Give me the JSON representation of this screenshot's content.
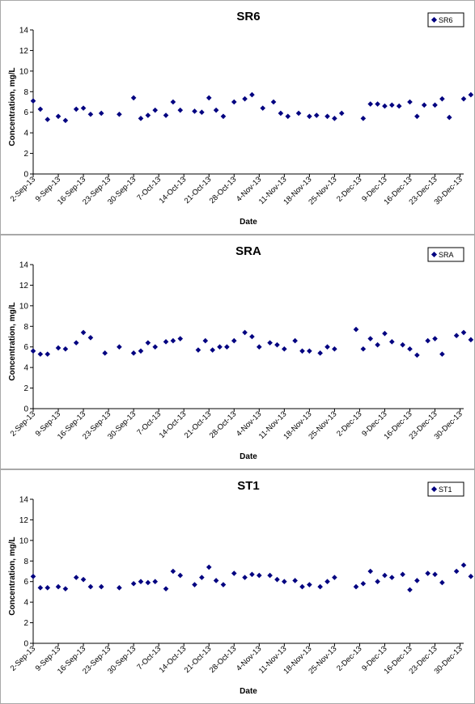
{
  "chart_data": [
    {
      "type": "scatter",
      "title": "SR6",
      "xlabel": "Date",
      "ylabel": "Concentration, mg/L",
      "ylim": [
        0,
        14
      ],
      "yticks": [
        "0",
        "2",
        "4",
        "6",
        "8",
        "10",
        "12",
        "14"
      ],
      "xlim": [
        "2013-09-02",
        "2013-12-31"
      ],
      "xtick_labels": [
        "2-Sep-13",
        "9-Sep-13",
        "16-Sep-13",
        "23-Sep-13",
        "30-Sep-13",
        "7-Oct-13",
        "14-Oct-13",
        "21-Oct-13",
        "28-Oct-13",
        "4-Nov-13",
        "11-Nov-13",
        "18-Nov-13",
        "25-Nov-13",
        "2-Dec-13",
        "9-Dec-13",
        "16-Dec-13",
        "23-Dec-13",
        "30-Dec-13"
      ],
      "legend_placement": "top-right",
      "grid": false,
      "marker_color": "#000080",
      "series": [
        {
          "name": "SR6",
          "points": [
            {
              "x": "2013-09-02",
              "y": 7.1
            },
            {
              "x": "2013-09-04",
              "y": 6.3
            },
            {
              "x": "2013-09-06",
              "y": 5.3
            },
            {
              "x": "2013-09-09",
              "y": 5.6
            },
            {
              "x": "2013-09-11",
              "y": 5.2
            },
            {
              "x": "2013-09-14",
              "y": 6.3
            },
            {
              "x": "2013-09-16",
              "y": 6.4
            },
            {
              "x": "2013-09-18",
              "y": 5.8
            },
            {
              "x": "2013-09-21",
              "y": 5.9
            },
            {
              "x": "2013-09-26",
              "y": 5.8
            },
            {
              "x": "2013-09-30",
              "y": 7.4
            },
            {
              "x": "2013-10-02",
              "y": 5.4
            },
            {
              "x": "2013-10-04",
              "y": 5.7
            },
            {
              "x": "2013-10-06",
              "y": 6.2
            },
            {
              "x": "2013-10-09",
              "y": 5.7
            },
            {
              "x": "2013-10-11",
              "y": 7.0
            },
            {
              "x": "2013-10-13",
              "y": 6.2
            },
            {
              "x": "2013-10-17",
              "y": 6.1
            },
            {
              "x": "2013-10-19",
              "y": 6.0
            },
            {
              "x": "2013-10-21",
              "y": 7.4
            },
            {
              "x": "2013-10-23",
              "y": 6.2
            },
            {
              "x": "2013-10-25",
              "y": 5.6
            },
            {
              "x": "2013-10-28",
              "y": 7.0
            },
            {
              "x": "2013-10-31",
              "y": 7.3
            },
            {
              "x": "2013-11-02",
              "y": 7.7
            },
            {
              "x": "2013-11-05",
              "y": 6.4
            },
            {
              "x": "2013-11-08",
              "y": 7.0
            },
            {
              "x": "2013-11-10",
              "y": 5.9
            },
            {
              "x": "2013-11-12",
              "y": 5.6
            },
            {
              "x": "2013-11-15",
              "y": 5.9
            },
            {
              "x": "2013-11-18",
              "y": 5.6
            },
            {
              "x": "2013-11-20",
              "y": 5.7
            },
            {
              "x": "2013-11-23",
              "y": 5.6
            },
            {
              "x": "2013-11-25",
              "y": 5.4
            },
            {
              "x": "2013-11-27",
              "y": 5.9
            },
            {
              "x": "2013-12-03",
              "y": 5.4
            },
            {
              "x": "2013-12-05",
              "y": 6.8
            },
            {
              "x": "2013-12-07",
              "y": 6.8
            },
            {
              "x": "2013-12-09",
              "y": 6.6
            },
            {
              "x": "2013-12-11",
              "y": 6.7
            },
            {
              "x": "2013-12-13",
              "y": 6.6
            },
            {
              "x": "2013-12-16",
              "y": 7.0
            },
            {
              "x": "2013-12-18",
              "y": 5.6
            },
            {
              "x": "2013-12-20",
              "y": 6.7
            },
            {
              "x": "2013-12-23",
              "y": 6.7
            },
            {
              "x": "2013-12-25",
              "y": 7.3
            },
            {
              "x": "2013-12-27",
              "y": 5.5
            },
            {
              "x": "2013-12-31",
              "y": 7.3
            },
            {
              "x": "2014-01-02",
              "y": 7.7
            },
            {
              "x": "2014-01-04",
              "y": 6.5
            },
            {
              "x": "2014-01-06",
              "y": 6.2
            }
          ]
        }
      ]
    },
    {
      "type": "scatter",
      "title": "SRA",
      "xlabel": "Date",
      "ylabel": "Concentration, mg/L",
      "ylim": [
        0,
        14
      ],
      "yticks": [
        "0",
        "2",
        "4",
        "6",
        "8",
        "10",
        "12",
        "14"
      ],
      "xlim": [
        "2013-09-02",
        "2013-12-31"
      ],
      "xtick_labels": [
        "2-Sep-13",
        "9-Sep-13",
        "16-Sep-13",
        "23-Sep-13",
        "30-Sep-13",
        "7-Oct-13",
        "14-Oct-13",
        "21-Oct-13",
        "28-Oct-13",
        "4-Nov-13",
        "11-Nov-13",
        "18-Nov-13",
        "25-Nov-13",
        "2-Dec-13",
        "9-Dec-13",
        "16-Dec-13",
        "23-Dec-13",
        "30-Dec-13"
      ],
      "legend_placement": "top-right",
      "grid": false,
      "marker_color": "#000080",
      "series": [
        {
          "name": "SRA",
          "points": [
            {
              "x": "2013-09-02",
              "y": 5.6
            },
            {
              "x": "2013-09-04",
              "y": 5.3
            },
            {
              "x": "2013-09-06",
              "y": 5.3
            },
            {
              "x": "2013-09-09",
              "y": 5.9
            },
            {
              "x": "2013-09-11",
              "y": 5.8
            },
            {
              "x": "2013-09-14",
              "y": 6.4
            },
            {
              "x": "2013-09-16",
              "y": 7.4
            },
            {
              "x": "2013-09-18",
              "y": 6.9
            },
            {
              "x": "2013-09-22",
              "y": 5.4
            },
            {
              "x": "2013-09-26",
              "y": 6.0
            },
            {
              "x": "2013-09-30",
              "y": 5.4
            },
            {
              "x": "2013-10-02",
              "y": 5.6
            },
            {
              "x": "2013-10-04",
              "y": 6.4
            },
            {
              "x": "2013-10-06",
              "y": 6.0
            },
            {
              "x": "2013-10-09",
              "y": 6.5
            },
            {
              "x": "2013-10-11",
              "y": 6.6
            },
            {
              "x": "2013-10-13",
              "y": 6.8
            },
            {
              "x": "2013-10-18",
              "y": 5.7
            },
            {
              "x": "2013-10-20",
              "y": 6.6
            },
            {
              "x": "2013-10-22",
              "y": 5.7
            },
            {
              "x": "2013-10-24",
              "y": 6.0
            },
            {
              "x": "2013-10-26",
              "y": 6.0
            },
            {
              "x": "2013-10-28",
              "y": 6.6
            },
            {
              "x": "2013-10-31",
              "y": 7.4
            },
            {
              "x": "2013-11-02",
              "y": 7.0
            },
            {
              "x": "2013-11-04",
              "y": 6.0
            },
            {
              "x": "2013-11-07",
              "y": 6.4
            },
            {
              "x": "2013-11-09",
              "y": 6.2
            },
            {
              "x": "2013-11-11",
              "y": 5.8
            },
            {
              "x": "2013-11-14",
              "y": 6.6
            },
            {
              "x": "2013-11-16",
              "y": 5.6
            },
            {
              "x": "2013-11-18",
              "y": 5.6
            },
            {
              "x": "2013-11-21",
              "y": 5.4
            },
            {
              "x": "2013-11-23",
              "y": 6.0
            },
            {
              "x": "2013-11-25",
              "y": 5.8
            },
            {
              "x": "2013-12-01",
              "y": 7.7
            },
            {
              "x": "2013-12-03",
              "y": 5.8
            },
            {
              "x": "2013-12-05",
              "y": 6.8
            },
            {
              "x": "2013-12-07",
              "y": 6.2
            },
            {
              "x": "2013-12-09",
              "y": 7.3
            },
            {
              "x": "2013-12-11",
              "y": 6.5
            },
            {
              "x": "2013-12-14",
              "y": 6.2
            },
            {
              "x": "2013-12-16",
              "y": 5.8
            },
            {
              "x": "2013-12-18",
              "y": 5.2
            },
            {
              "x": "2013-12-21",
              "y": 6.6
            },
            {
              "x": "2013-12-23",
              "y": 6.8
            },
            {
              "x": "2013-12-25",
              "y": 5.3
            },
            {
              "x": "2013-12-29",
              "y": 7.1
            },
            {
              "x": "2013-12-31",
              "y": 7.4
            },
            {
              "x": "2014-01-02",
              "y": 6.7
            },
            {
              "x": "2014-01-04",
              "y": 7.1
            }
          ]
        }
      ]
    },
    {
      "type": "scatter",
      "title": "ST1",
      "xlabel": "Date",
      "ylabel": "Concentration, mg/L",
      "ylim": [
        0,
        14
      ],
      "yticks": [
        "0",
        "2",
        "4",
        "6",
        "8",
        "10",
        "12",
        "14"
      ],
      "xlim": [
        "2013-09-02",
        "2013-12-31"
      ],
      "xtick_labels": [
        "2-Sep-13",
        "9-Sep-13",
        "16-Sep-13",
        "23-Sep-13",
        "30-Sep-13",
        "7-Oct-13",
        "14-Oct-13",
        "21-Oct-13",
        "28-Oct-13",
        "4-Nov-13",
        "11-Nov-13",
        "18-Nov-13",
        "25-Nov-13",
        "2-Dec-13",
        "9-Dec-13",
        "16-Dec-13",
        "23-Dec-13",
        "30-Dec-13"
      ],
      "legend_placement": "top-right",
      "grid": false,
      "marker_color": "#000080",
      "series": [
        {
          "name": "ST1",
          "points": [
            {
              "x": "2013-09-02",
              "y": 6.5
            },
            {
              "x": "2013-09-04",
              "y": 5.4
            },
            {
              "x": "2013-09-06",
              "y": 5.4
            },
            {
              "x": "2013-09-09",
              "y": 5.5
            },
            {
              "x": "2013-09-11",
              "y": 5.3
            },
            {
              "x": "2013-09-14",
              "y": 6.4
            },
            {
              "x": "2013-09-16",
              "y": 6.2
            },
            {
              "x": "2013-09-18",
              "y": 5.5
            },
            {
              "x": "2013-09-21",
              "y": 5.5
            },
            {
              "x": "2013-09-26",
              "y": 5.4
            },
            {
              "x": "2013-09-30",
              "y": 5.8
            },
            {
              "x": "2013-10-02",
              "y": 6.0
            },
            {
              "x": "2013-10-04",
              "y": 5.9
            },
            {
              "x": "2013-10-06",
              "y": 6.0
            },
            {
              "x": "2013-10-09",
              "y": 5.3
            },
            {
              "x": "2013-10-11",
              "y": 7.0
            },
            {
              "x": "2013-10-13",
              "y": 6.6
            },
            {
              "x": "2013-10-17",
              "y": 5.7
            },
            {
              "x": "2013-10-19",
              "y": 6.4
            },
            {
              "x": "2013-10-21",
              "y": 7.4
            },
            {
              "x": "2013-10-23",
              "y": 6.1
            },
            {
              "x": "2013-10-25",
              "y": 5.7
            },
            {
              "x": "2013-10-28",
              "y": 6.8
            },
            {
              "x": "2013-10-31",
              "y": 6.4
            },
            {
              "x": "2013-11-02",
              "y": 6.7
            },
            {
              "x": "2013-11-04",
              "y": 6.6
            },
            {
              "x": "2013-11-07",
              "y": 6.6
            },
            {
              "x": "2013-11-09",
              "y": 6.2
            },
            {
              "x": "2013-11-11",
              "y": 6.0
            },
            {
              "x": "2013-11-14",
              "y": 6.1
            },
            {
              "x": "2013-11-16",
              "y": 5.5
            },
            {
              "x": "2013-11-18",
              "y": 5.7
            },
            {
              "x": "2013-11-21",
              "y": 5.5
            },
            {
              "x": "2013-11-23",
              "y": 6.0
            },
            {
              "x": "2013-11-25",
              "y": 6.4
            },
            {
              "x": "2013-12-01",
              "y": 5.5
            },
            {
              "x": "2013-12-03",
              "y": 5.8
            },
            {
              "x": "2013-12-05",
              "y": 7.0
            },
            {
              "x": "2013-12-07",
              "y": 6.0
            },
            {
              "x": "2013-12-09",
              "y": 6.6
            },
            {
              "x": "2013-12-11",
              "y": 6.4
            },
            {
              "x": "2013-12-14",
              "y": 6.7
            },
            {
              "x": "2013-12-16",
              "y": 5.2
            },
            {
              "x": "2013-12-18",
              "y": 6.1
            },
            {
              "x": "2013-12-21",
              "y": 6.8
            },
            {
              "x": "2013-12-23",
              "y": 6.7
            },
            {
              "x": "2013-12-25",
              "y": 5.9
            },
            {
              "x": "2013-12-29",
              "y": 7.0
            },
            {
              "x": "2013-12-31",
              "y": 7.6
            },
            {
              "x": "2014-01-02",
              "y": 6.5
            },
            {
              "x": "2014-01-04",
              "y": 6.1
            }
          ]
        }
      ]
    }
  ]
}
